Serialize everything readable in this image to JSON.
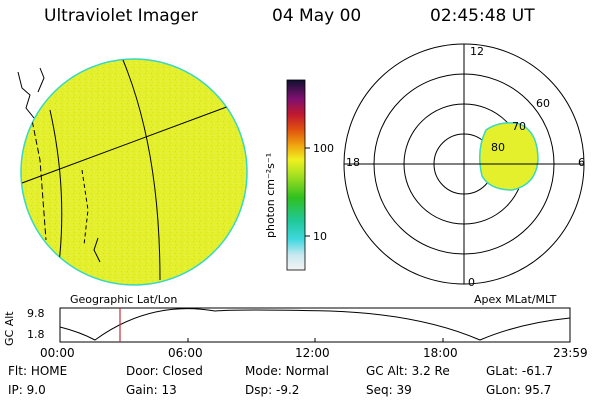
{
  "header": {
    "instrument": "Ultraviolet Imager",
    "date": "04 May 00",
    "time": "02:45:48 UT"
  },
  "geo_panel": {
    "caption": "Geographic Lat/Lon"
  },
  "colorbar": {
    "label": "photon cm⁻²s⁻¹",
    "ticks": [
      "100",
      "10"
    ]
  },
  "polar_panel": {
    "caption": "Apex MLat/MLT",
    "mlt_labels": {
      "top": "12",
      "left": "18",
      "right": "6",
      "bottom": "0"
    },
    "mlat_labels": [
      "60",
      "70",
      "80"
    ]
  },
  "altitude_plot": {
    "ylabel": "GC Alt",
    "yticks": [
      "9.8",
      "1.8"
    ],
    "xticks": [
      "00:00",
      "06:00",
      "12:00",
      "18:00",
      "23:59"
    ]
  },
  "info": {
    "row1": [
      {
        "label": "Flt:",
        "value": "HOME"
      },
      {
        "label": "Door:",
        "value": "Closed"
      },
      {
        "label": "Mode:",
        "value": "Normal"
      },
      {
        "label": "GC Alt:",
        "value": "3.2 Re"
      },
      {
        "label": "GLat:",
        "value": "-61.7"
      }
    ],
    "row2": [
      {
        "label": "IP:",
        "value": "9.0"
      },
      {
        "label": "Gain:",
        "value": "13"
      },
      {
        "label": "Dsp:",
        "value": "-9.2"
      },
      {
        "label": "Seq:",
        "value": "39"
      },
      {
        "label": "GLon:",
        "value": "95.7"
      }
    ]
  },
  "colors": {
    "image_fill": "#e4f02c",
    "image_edge": "#36d8c0",
    "marker": "#c0303a"
  }
}
